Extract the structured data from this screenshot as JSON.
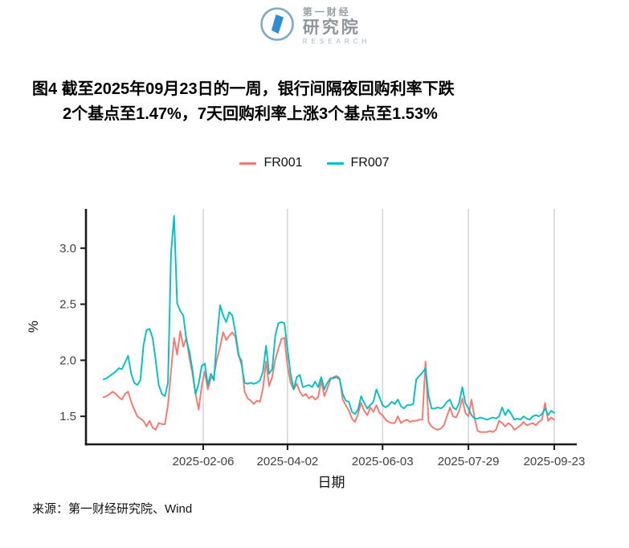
{
  "logo": {
    "line1": "第一财经",
    "line2": "研究院",
    "line3": "RESEARCH",
    "icon_color": "#3a8fca",
    "shape_color": "#2f8dd0"
  },
  "title": {
    "line1": "图4  截至2025年09月23日的一周，银行间隔夜回购利率下跌",
    "line2": "2个基点至1.47%，7天回购利率上涨3个基点至1.53%"
  },
  "source": "来源：第一财经研究院、Wind",
  "colors": {
    "axis": "#1a1a1a",
    "grid": "#c9c9c9",
    "tick_label": "#404040",
    "axis_title": "#111111"
  },
  "chart_data": {
    "type": "line",
    "title": "",
    "xlabel": "日期",
    "ylabel": "%",
    "grid": "vertical-only",
    "legend_position": "top-center",
    "x_unit": "days since 2024-12-03",
    "xlim_days": [
      -11.5,
      308.7
    ],
    "ylim": [
      1.25,
      3.35
    ],
    "y_ticks": [
      1.5,
      2.0,
      2.5,
      3.0
    ],
    "x_ticks": [
      {
        "label": "2025-02-06",
        "day": 65
      },
      {
        "label": "2025-04-02",
        "day": 120
      },
      {
        "label": "2025-06-03",
        "day": 182
      },
      {
        "label": "2025-07-29",
        "day": 238
      },
      {
        "label": "2025-09-23",
        "day": 294
      }
    ],
    "series": [
      {
        "name": "FR001",
        "color": "#F8766D",
        "points": [
          [
            0,
            1.67
          ],
          [
            2,
            1.68
          ],
          [
            4,
            1.7
          ],
          [
            6,
            1.72
          ],
          [
            8,
            1.7
          ],
          [
            10,
            1.67
          ],
          [
            12,
            1.65
          ],
          [
            14,
            1.7
          ],
          [
            16,
            1.72
          ],
          [
            18,
            1.63
          ],
          [
            20,
            1.56
          ],
          [
            22,
            1.5
          ],
          [
            24,
            1.48
          ],
          [
            26,
            1.46
          ],
          [
            28,
            1.41
          ],
          [
            30,
            1.46
          ],
          [
            32,
            1.4
          ],
          [
            34,
            1.38
          ],
          [
            36,
            1.44
          ],
          [
            38,
            1.43
          ],
          [
            40,
            1.43
          ],
          [
            42,
            1.6
          ],
          [
            44,
            1.9
          ],
          [
            46,
            2.2
          ],
          [
            48,
            2.05
          ],
          [
            50,
            2.26
          ],
          [
            52,
            2.12
          ],
          [
            54,
            2.2
          ],
          [
            56,
            2.02
          ],
          [
            58,
            1.88
          ],
          [
            60,
            1.7
          ],
          [
            62,
            1.56
          ],
          [
            64,
            1.77
          ],
          [
            66,
            1.9
          ],
          [
            68,
            1.74
          ],
          [
            70,
            1.84
          ],
          [
            72,
            1.86
          ],
          [
            74,
            2.01
          ],
          [
            76,
            2.12
          ],
          [
            78,
            2.25
          ],
          [
            80,
            2.18
          ],
          [
            82,
            2.22
          ],
          [
            84,
            2.25
          ],
          [
            86,
            2.21
          ],
          [
            88,
            2.04
          ],
          [
            90,
            2.0
          ],
          [
            92,
            1.72
          ],
          [
            94,
            1.66
          ],
          [
            96,
            1.64
          ],
          [
            98,
            1.61
          ],
          [
            100,
            1.64
          ],
          [
            102,
            1.63
          ],
          [
            104,
            1.75
          ],
          [
            106,
            1.99
          ],
          [
            108,
            1.77
          ],
          [
            110,
            1.85
          ],
          [
            112,
            2.01
          ],
          [
            114,
            2.1
          ],
          [
            116,
            2.19
          ],
          [
            118,
            2.2
          ],
          [
            120,
            1.95
          ],
          [
            122,
            1.8
          ],
          [
            124,
            1.74
          ],
          [
            126,
            1.79
          ],
          [
            128,
            1.72
          ],
          [
            130,
            1.68
          ],
          [
            132,
            1.7
          ],
          [
            134,
            1.66
          ],
          [
            136,
            1.68
          ],
          [
            138,
            1.65
          ],
          [
            140,
            1.67
          ],
          [
            142,
            1.82
          ],
          [
            144,
            1.68
          ],
          [
            146,
            1.75
          ],
          [
            148,
            1.83
          ],
          [
            150,
            1.85
          ],
          [
            152,
            1.86
          ],
          [
            154,
            1.84
          ],
          [
            156,
            1.65
          ],
          [
            158,
            1.6
          ],
          [
            160,
            1.55
          ],
          [
            162,
            1.48
          ],
          [
            164,
            1.45
          ],
          [
            166,
            1.52
          ],
          [
            168,
            1.62
          ],
          [
            170,
            1.55
          ],
          [
            172,
            1.51
          ],
          [
            174,
            1.58
          ],
          [
            176,
            1.54
          ],
          [
            178,
            1.6
          ],
          [
            180,
            1.53
          ],
          [
            182,
            1.51
          ],
          [
            184,
            1.47
          ],
          [
            186,
            1.45
          ],
          [
            188,
            1.44
          ],
          [
            190,
            1.44
          ],
          [
            192,
            1.5
          ],
          [
            194,
            1.44
          ],
          [
            196,
            1.46
          ],
          [
            198,
            1.47
          ],
          [
            200,
            1.45
          ],
          [
            202,
            1.46
          ],
          [
            204,
            1.46
          ],
          [
            206,
            1.47
          ],
          [
            208,
            1.47
          ],
          [
            210,
            1.99
          ],
          [
            212,
            1.45
          ],
          [
            214,
            1.41
          ],
          [
            216,
            1.39
          ],
          [
            218,
            1.38
          ],
          [
            220,
            1.39
          ],
          [
            222,
            1.42
          ],
          [
            224,
            1.5
          ],
          [
            226,
            1.58
          ],
          [
            228,
            1.5
          ],
          [
            230,
            1.49
          ],
          [
            232,
            1.55
          ],
          [
            234,
            1.66
          ],
          [
            236,
            1.53
          ],
          [
            238,
            1.5
          ],
          [
            240,
            1.65
          ],
          [
            242,
            1.49
          ],
          [
            244,
            1.37
          ],
          [
            246,
            1.36
          ],
          [
            248,
            1.36
          ],
          [
            250,
            1.36
          ],
          [
            252,
            1.37
          ],
          [
            254,
            1.36
          ],
          [
            256,
            1.38
          ],
          [
            258,
            1.46
          ],
          [
            260,
            1.44
          ],
          [
            262,
            1.41
          ],
          [
            264,
            1.44
          ],
          [
            266,
            1.42
          ],
          [
            268,
            1.38
          ],
          [
            270,
            1.4
          ],
          [
            272,
            1.42
          ],
          [
            274,
            1.45
          ],
          [
            276,
            1.42
          ],
          [
            278,
            1.43
          ],
          [
            280,
            1.44
          ],
          [
            282,
            1.42
          ],
          [
            284,
            1.45
          ],
          [
            286,
            1.47
          ],
          [
            288,
            1.62
          ],
          [
            290,
            1.46
          ],
          [
            292,
            1.49
          ],
          [
            294,
            1.47
          ]
        ]
      },
      {
        "name": "FR007",
        "color": "#00BFC4",
        "points": [
          [
            0,
            1.83
          ],
          [
            2,
            1.84
          ],
          [
            4,
            1.86
          ],
          [
            6,
            1.88
          ],
          [
            8,
            1.9
          ],
          [
            10,
            1.93
          ],
          [
            12,
            1.92
          ],
          [
            14,
            1.98
          ],
          [
            16,
            2.04
          ],
          [
            18,
            1.88
          ],
          [
            20,
            1.8
          ],
          [
            22,
            1.78
          ],
          [
            24,
            1.82
          ],
          [
            26,
            2.13
          ],
          [
            28,
            2.27
          ],
          [
            30,
            2.28
          ],
          [
            32,
            2.2
          ],
          [
            34,
            2.0
          ],
          [
            36,
            1.78
          ],
          [
            38,
            1.7
          ],
          [
            40,
            1.68
          ],
          [
            42,
            1.8
          ],
          [
            44,
            2.95
          ],
          [
            46,
            3.29
          ],
          [
            48,
            2.51
          ],
          [
            50,
            2.44
          ],
          [
            52,
            2.4
          ],
          [
            54,
            2.18
          ],
          [
            56,
            2.08
          ],
          [
            58,
            1.91
          ],
          [
            60,
            1.7
          ],
          [
            62,
            1.79
          ],
          [
            64,
            1.95
          ],
          [
            66,
            1.97
          ],
          [
            68,
            1.78
          ],
          [
            70,
            1.88
          ],
          [
            72,
            1.82
          ],
          [
            74,
            2.2
          ],
          [
            76,
            2.49
          ],
          [
            78,
            2.4
          ],
          [
            80,
            2.34
          ],
          [
            82,
            2.43
          ],
          [
            84,
            2.4
          ],
          [
            86,
            2.25
          ],
          [
            88,
            2.06
          ],
          [
            90,
            1.96
          ],
          [
            92,
            1.8
          ],
          [
            94,
            1.79
          ],
          [
            96,
            1.8
          ],
          [
            98,
            1.79
          ],
          [
            100,
            1.8
          ],
          [
            102,
            1.82
          ],
          [
            104,
            1.9
          ],
          [
            106,
            2.13
          ],
          [
            108,
            1.88
          ],
          [
            110,
            1.92
          ],
          [
            112,
            2.22
          ],
          [
            114,
            2.33
          ],
          [
            116,
            2.34
          ],
          [
            118,
            2.33
          ],
          [
            120,
            2.1
          ],
          [
            122,
            1.88
          ],
          [
            124,
            1.74
          ],
          [
            126,
            1.85
          ],
          [
            128,
            1.87
          ],
          [
            130,
            1.76
          ],
          [
            132,
            1.77
          ],
          [
            134,
            1.78
          ],
          [
            136,
            1.76
          ],
          [
            138,
            1.81
          ],
          [
            140,
            1.76
          ],
          [
            142,
            1.85
          ],
          [
            144,
            1.74
          ],
          [
            146,
            1.8
          ],
          [
            148,
            1.84
          ],
          [
            150,
            1.84
          ],
          [
            152,
            1.85
          ],
          [
            154,
            1.83
          ],
          [
            156,
            1.7
          ],
          [
            158,
            1.64
          ],
          [
            160,
            1.63
          ],
          [
            162,
            1.54
          ],
          [
            164,
            1.52
          ],
          [
            166,
            1.56
          ],
          [
            168,
            1.68
          ],
          [
            170,
            1.62
          ],
          [
            172,
            1.57
          ],
          [
            174,
            1.6
          ],
          [
            176,
            1.63
          ],
          [
            178,
            1.74
          ],
          [
            180,
            1.67
          ],
          [
            182,
            1.6
          ],
          [
            184,
            1.58
          ],
          [
            186,
            1.6
          ],
          [
            188,
            1.63
          ],
          [
            190,
            1.61
          ],
          [
            192,
            1.65
          ],
          [
            194,
            1.59
          ],
          [
            196,
            1.57
          ],
          [
            198,
            1.6
          ],
          [
            200,
            1.6
          ],
          [
            202,
            1.61
          ],
          [
            204,
            1.83
          ],
          [
            206,
            1.86
          ],
          [
            208,
            1.89
          ],
          [
            210,
            1.93
          ],
          [
            212,
            1.68
          ],
          [
            214,
            1.57
          ],
          [
            216,
            1.57
          ],
          [
            218,
            1.58
          ],
          [
            220,
            1.57
          ],
          [
            222,
            1.59
          ],
          [
            224,
            1.63
          ],
          [
            226,
            1.65
          ],
          [
            228,
            1.58
          ],
          [
            230,
            1.56
          ],
          [
            232,
            1.62
          ],
          [
            234,
            1.76
          ],
          [
            236,
            1.62
          ],
          [
            238,
            1.57
          ],
          [
            240,
            1.51
          ],
          [
            242,
            1.48
          ],
          [
            244,
            1.48
          ],
          [
            246,
            1.49
          ],
          [
            248,
            1.48
          ],
          [
            250,
            1.47
          ],
          [
            252,
            1.48
          ],
          [
            254,
            1.49
          ],
          [
            256,
            1.48
          ],
          [
            258,
            1.5
          ],
          [
            260,
            1.58
          ],
          [
            262,
            1.51
          ],
          [
            264,
            1.56
          ],
          [
            266,
            1.52
          ],
          [
            268,
            1.47
          ],
          [
            270,
            1.48
          ],
          [
            272,
            1.47
          ],
          [
            274,
            1.5
          ],
          [
            276,
            1.48
          ],
          [
            278,
            1.47
          ],
          [
            280,
            1.5
          ],
          [
            282,
            1.51
          ],
          [
            284,
            1.5
          ],
          [
            286,
            1.52
          ],
          [
            288,
            1.57
          ],
          [
            290,
            1.51
          ],
          [
            292,
            1.55
          ],
          [
            294,
            1.53
          ]
        ]
      }
    ]
  }
}
